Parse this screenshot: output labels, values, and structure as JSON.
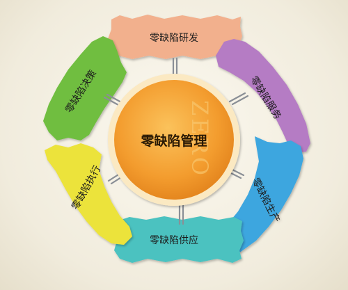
{
  "center": {
    "title": "零缺陷管理",
    "watermark": "ZERO"
  },
  "strips": [
    {
      "label": "零缺陷研发",
      "color": "#f2b08d"
    },
    {
      "label": "零缺陷服务",
      "color": "#b57bc4"
    },
    {
      "label": "零缺陷生产",
      "color": "#3ea6df"
    },
    {
      "label": "零缺陷供应",
      "color": "#4cc2c0"
    },
    {
      "label": "零缺陷执行",
      "color": "#ece33a"
    },
    {
      "label": "零缺陷决策",
      "color": "#6fbe3f"
    }
  ],
  "colors": {
    "background": "#f3eee0",
    "center_orange": "#f3a23a",
    "center_rim": "#fbe9c2",
    "clip": "#8a8f96"
  }
}
